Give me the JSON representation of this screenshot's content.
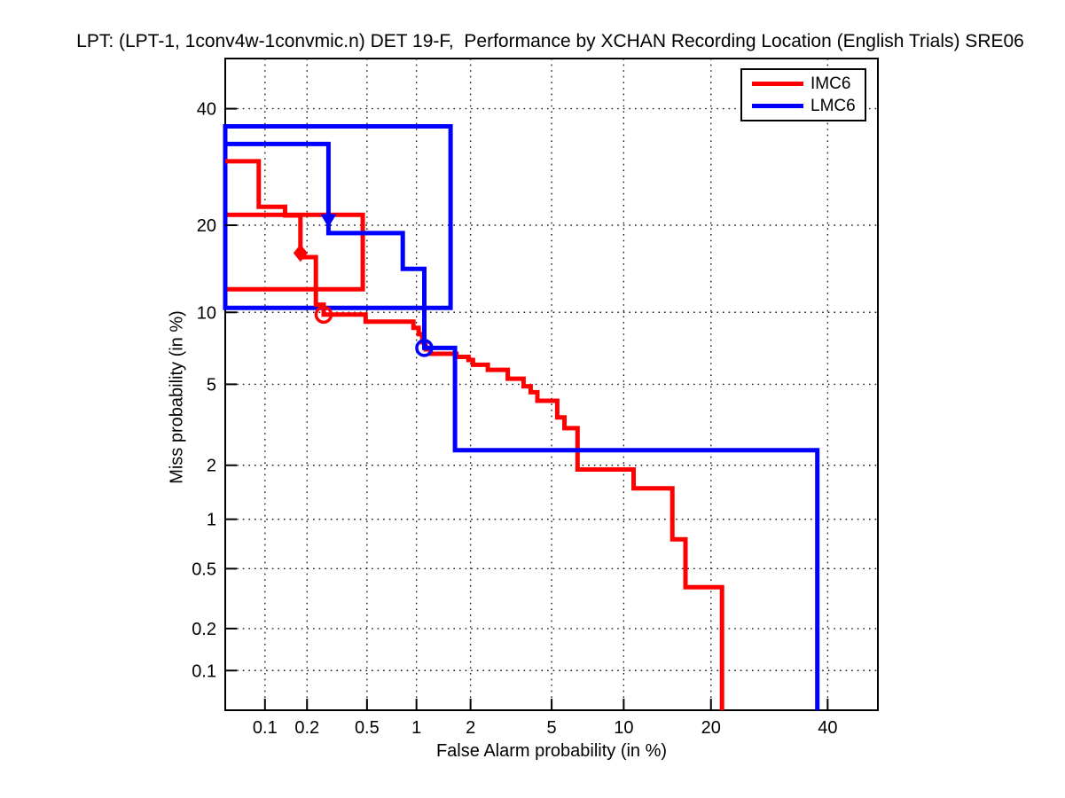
{
  "header": {
    "title": "LPT: (LPT-1, 1conv4w-1convmic.n) DET 19-F,  Performance by XCHAN Recording Location (English Trials) SRE06"
  },
  "axes": {
    "x_label": "False Alarm probability (in %)",
    "y_label": "Miss probability (in %)",
    "tick_labels": [
      "0.1",
      "0.2",
      "0.5",
      "1",
      "2",
      "5",
      "10",
      "20",
      "40"
    ],
    "tick_values_percent": [
      0.1,
      0.2,
      0.5,
      1,
      2,
      5,
      10,
      20,
      40
    ],
    "axis_min_percent": 0.05,
    "axis_max_percent": 50,
    "scale": "normal-deviate (probit), grid dotted at each tick"
  },
  "legend": {
    "items": [
      {
        "label": "IMC6",
        "color": "#ff0000"
      },
      {
        "label": "LMC6",
        "color": "#0000ff"
      }
    ]
  },
  "chart_data": {
    "type": "line",
    "subtype": "DET curves (step functions on probit-probit axes)",
    "title": "LPT: (LPT-1, 1conv4w-1convmic.n) DET 19-F,  Performance by XCHAN Recording Location (English Trials) SRE06",
    "xlabel": "False Alarm probability (in %)",
    "ylabel": "Miss probability (in %)",
    "xlim_percent": [
      0.05,
      50
    ],
    "ylim_percent": [
      0.05,
      50
    ],
    "grid": true,
    "legend_position": "top-right inside plot",
    "series": [
      {
        "name": "IMC6",
        "color": "#ff0000",
        "points_fa_miss_percent": [
          [
            0.05,
            30.2
          ],
          [
            0.09,
            30.2
          ],
          [
            0.09,
            22.7
          ],
          [
            0.14,
            22.7
          ],
          [
            0.14,
            21.4
          ],
          [
            0.18,
            21.4
          ],
          [
            0.18,
            15.8
          ],
          [
            0.23,
            15.8
          ],
          [
            0.23,
            10.7
          ],
          [
            0.26,
            10.7
          ],
          [
            0.26,
            9.8
          ],
          [
            0.49,
            9.8
          ],
          [
            0.49,
            9.2
          ],
          [
            0.96,
            9.2
          ],
          [
            0.96,
            8.7
          ],
          [
            1.03,
            8.7
          ],
          [
            1.03,
            8.2
          ],
          [
            1.08,
            8.2
          ],
          [
            1.08,
            7.6
          ],
          [
            1.13,
            7.6
          ],
          [
            1.13,
            7.1
          ],
          [
            1.2,
            7.1
          ],
          [
            1.2,
            6.8
          ],
          [
            1.68,
            6.8
          ],
          [
            1.68,
            6.6
          ],
          [
            1.95,
            6.6
          ],
          [
            1.95,
            6.4
          ],
          [
            2.06,
            6.4
          ],
          [
            2.06,
            6.1
          ],
          [
            2.46,
            6.1
          ],
          [
            2.46,
            5.8
          ],
          [
            3.1,
            5.8
          ],
          [
            3.1,
            5.3
          ],
          [
            3.7,
            5.3
          ],
          [
            3.7,
            4.9
          ],
          [
            4.0,
            4.9
          ],
          [
            4.0,
            4.6
          ],
          [
            4.3,
            4.6
          ],
          [
            4.3,
            4.2
          ],
          [
            5.3,
            4.2
          ],
          [
            5.3,
            3.5
          ],
          [
            5.7,
            3.5
          ],
          [
            5.7,
            3.1
          ],
          [
            6.5,
            3.1
          ],
          [
            6.5,
            1.9
          ],
          [
            10.9,
            1.9
          ],
          [
            10.9,
            1.5
          ],
          [
            15.0,
            1.5
          ],
          [
            15.0,
            0.76
          ],
          [
            16.6,
            0.76
          ],
          [
            16.6,
            0.38
          ],
          [
            21.6,
            0.38
          ],
          [
            21.6,
            0.05
          ]
        ],
        "confidence_box_percent": {
          "fa": [
            0.05,
            0.47
          ],
          "miss": [
            12.2,
            21.5
          ]
        },
        "optimum_point_percent": [
          0.26,
          9.8
        ],
        "optimum_marker": "open-circle",
        "actual_point_percent": [
          0.18,
          16.3
        ],
        "actual_marker": "filled-diamond"
      },
      {
        "name": "LMC6",
        "color": "#0000ff",
        "points_fa_miss_percent": [
          [
            0.05,
            33.3
          ],
          [
            0.28,
            33.3
          ],
          [
            0.28,
            18.9
          ],
          [
            0.83,
            18.9
          ],
          [
            0.83,
            14.4
          ],
          [
            1.11,
            14.4
          ],
          [
            1.11,
            7.2
          ],
          [
            1.65,
            7.2
          ],
          [
            1.65,
            2.4
          ],
          [
            38.0,
            2.4
          ],
          [
            38.0,
            0.05
          ]
        ],
        "confidence_box_percent": {
          "fa": [
            0.05,
            1.56
          ],
          "miss": [
            10.4,
            36.6
          ]
        },
        "optimum_point_percent": [
          1.11,
          7.2
        ],
        "optimum_marker": "open-circle",
        "actual_point_percent": [
          0.28,
          20.7
        ],
        "actual_marker": "filled-triangle-down"
      }
    ]
  },
  "colors": {
    "series_red": "#ff0000",
    "series_blue": "#0000ff",
    "grid": "#000000",
    "text": "#000000",
    "background": "#ffffff"
  }
}
